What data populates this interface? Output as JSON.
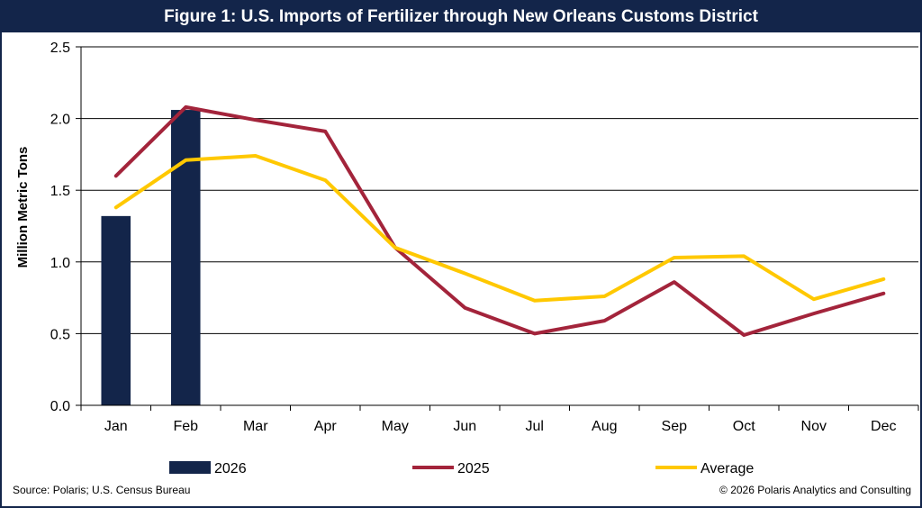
{
  "header": {
    "title": "Figure 1: U.S. Imports of Fertilizer through New Orleans Customs District"
  },
  "footer": {
    "source": "Source: Polaris; U.S. Census Bureau",
    "copyright": "© 2026 Polaris Analytics and Consulting"
  },
  "chart_data": {
    "type": "bar",
    "title": "Figure 1: U.S. Imports of Fertilizer through New Orleans Customs District",
    "xlabel": "",
    "ylabel": "Million Metric Tons",
    "ylim": [
      0,
      2.5
    ],
    "yticks": [
      "0.0",
      "0.5",
      "1.0",
      "1.5",
      "2.0",
      "2.5"
    ],
    "grid": true,
    "legend_position": "bottom",
    "categories": [
      "Jan",
      "Feb",
      "Mar",
      "Apr",
      "May",
      "Jun",
      "Jul",
      "Aug",
      "Sep",
      "Oct",
      "Nov",
      "Dec"
    ],
    "series": [
      {
        "name": "2026",
        "type": "bar",
        "color": "#13254a",
        "values": [
          1.32,
          2.06,
          null,
          null,
          null,
          null,
          null,
          null,
          null,
          null,
          null,
          null
        ]
      },
      {
        "name": "2025",
        "type": "line",
        "color": "#a3243b",
        "values": [
          1.6,
          2.08,
          1.99,
          1.91,
          1.1,
          0.68,
          0.5,
          0.59,
          0.86,
          0.49,
          0.64,
          0.78
        ]
      },
      {
        "name": "Average",
        "type": "line",
        "color": "#ffc800",
        "values": [
          1.38,
          1.71,
          1.74,
          1.57,
          1.1,
          0.92,
          0.73,
          0.76,
          1.03,
          1.04,
          0.74,
          0.88
        ]
      }
    ]
  }
}
